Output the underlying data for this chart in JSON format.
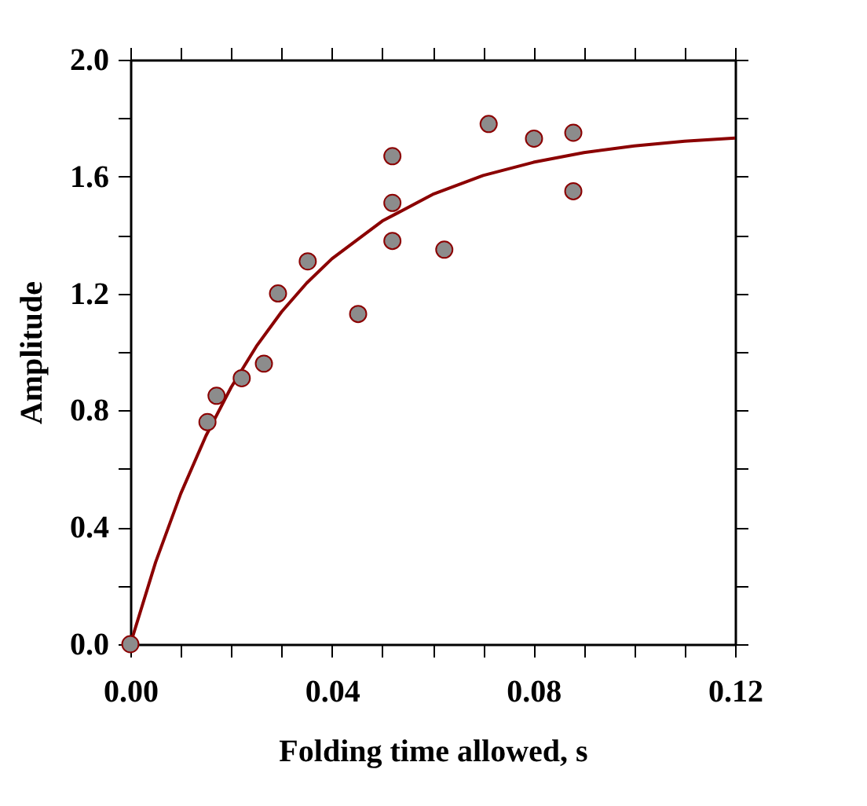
{
  "chart_data": {
    "type": "scatter",
    "xlabel": "Folding time allowed, s",
    "ylabel": "Amplitude",
    "xlim": [
      0,
      0.12
    ],
    "ylim": [
      0,
      2.0
    ],
    "xticks": [
      {
        "value": 0,
        "label": "0.00"
      },
      {
        "value": 0.01,
        "label": null
      },
      {
        "value": 0.02,
        "label": null
      },
      {
        "value": 0.03,
        "label": null
      },
      {
        "value": 0.04,
        "label": "0.04"
      },
      {
        "value": 0.05,
        "label": null
      },
      {
        "value": 0.06,
        "label": null
      },
      {
        "value": 0.07,
        "label": null
      },
      {
        "value": 0.08,
        "label": "0.08"
      },
      {
        "value": 0.09,
        "label": null
      },
      {
        "value": 0.1,
        "label": null
      },
      {
        "value": 0.11,
        "label": null
      },
      {
        "value": 0.12,
        "label": "0.12"
      }
    ],
    "yticks": [
      {
        "value": 0,
        "label": "0.0"
      },
      {
        "value": 0.2,
        "label": null
      },
      {
        "value": 0.4,
        "label": "0.4"
      },
      {
        "value": 0.6,
        "label": null
      },
      {
        "value": 0.8,
        "label": "0.8"
      },
      {
        "value": 1.0,
        "label": null
      },
      {
        "value": 1.2,
        "label": "1.2"
      },
      {
        "value": 1.4,
        "label": null
      },
      {
        "value": 1.6,
        "label": "1.6"
      },
      {
        "value": 1.8,
        "label": null
      },
      {
        "value": 2.0,
        "label": "2.0"
      }
    ],
    "grid": false,
    "series": [
      {
        "marker": "circle",
        "color": "#8c8c8c",
        "x": [
          0,
          0.0153,
          0.0171,
          0.0221,
          0.0265,
          0.0293,
          0.0352,
          0.0452,
          0.052,
          0.052,
          0.052,
          0.0623,
          0.0711,
          0.0801,
          0.0879,
          0.0879
        ],
        "values": [
          0,
          0.76,
          0.85,
          0.91,
          0.96,
          1.2,
          1.31,
          1.13,
          1.67,
          1.51,
          1.38,
          1.35,
          1.78,
          1.73,
          1.75,
          1.55
        ]
      },
      {
        "type": "line",
        "marker": "none",
        "line_style": "solid",
        "color": "#8b0000",
        "x": [
          0,
          0.005,
          0.01,
          0.015,
          0.02,
          0.025,
          0.03,
          0.035,
          0.04,
          0.05,
          0.06,
          0.07,
          0.08,
          0.09,
          0.1,
          0.11,
          0.12
        ],
        "values": [
          0,
          0.28,
          0.515,
          0.713,
          0.879,
          1.019,
          1.137,
          1.236,
          1.319,
          1.448,
          1.539,
          1.604,
          1.649,
          1.682,
          1.705,
          1.721,
          1.732
        ]
      }
    ]
  }
}
